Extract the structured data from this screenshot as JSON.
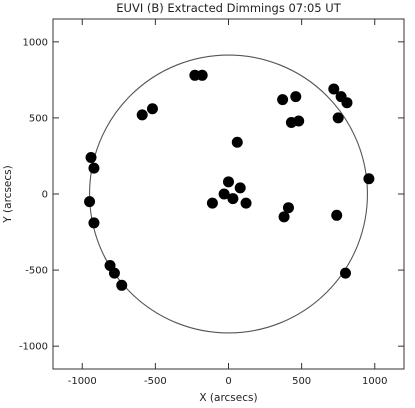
{
  "chart_data": {
    "type": "scatter",
    "title": "EUVI (B) Extracted Dimmings 07:05 UT",
    "xlabel": "X (arcsecs)",
    "ylabel": "Y (arcsecs)",
    "xlim": [
      -1200,
      1200
    ],
    "ylim": [
      -1150,
      1150
    ],
    "xticks": [
      -1000,
      -500,
      0,
      500,
      1000
    ],
    "yticks": [
      -1000,
      -500,
      0,
      500,
      1000
    ],
    "grid": false,
    "solar_limb_radius": 950,
    "mark_color": "#000000",
    "series": [
      {
        "points": [
          [
            -940,
            240
          ],
          [
            -920,
            170
          ],
          [
            -950,
            -50
          ],
          [
            -920,
            -190
          ],
          [
            -810,
            -470
          ],
          [
            -780,
            -520
          ],
          [
            -730,
            -600
          ],
          [
            -590,
            520
          ],
          [
            -520,
            560
          ],
          [
            -230,
            780
          ],
          [
            -180,
            780
          ],
          [
            60,
            340
          ],
          [
            -30,
            0
          ],
          [
            0,
            80
          ],
          [
            30,
            -30
          ],
          [
            80,
            40
          ],
          [
            120,
            -60
          ],
          [
            -110,
            -60
          ],
          [
            370,
            620
          ],
          [
            460,
            640
          ],
          [
            430,
            470
          ],
          [
            480,
            480
          ],
          [
            380,
            -150
          ],
          [
            410,
            -90
          ],
          [
            720,
            690
          ],
          [
            770,
            640
          ],
          [
            810,
            600
          ],
          [
            750,
            500
          ],
          [
            740,
            -140
          ],
          [
            960,
            100
          ],
          [
            800,
            -520
          ]
        ]
      }
    ]
  }
}
